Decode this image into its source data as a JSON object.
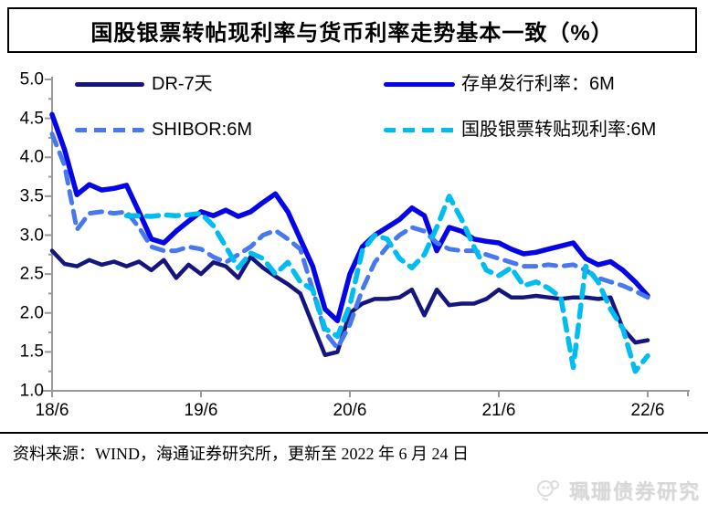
{
  "title": "国股银票转帖现利率与货币利率走势基本一致（%）",
  "legend": [
    {
      "label": "DR-7天",
      "color": "#151580",
      "dash": "solid"
    },
    {
      "label": "存单发行利率：6M",
      "color": "#0505E8",
      "dash": "solid"
    },
    {
      "label": "SHIBOR:6M",
      "color": "#4778EE",
      "dash": "dashed"
    },
    {
      "label": "国股银票转贴现利率:6M",
      "color": "#00BDF0",
      "dash": "dashed"
    }
  ],
  "footer": {
    "source": "资料来源：WIND，海通证券研究所，更新至 2022 年 6 月 24 日",
    "watermark": "珮珊债券研究"
  },
  "chart_data": {
    "type": "line",
    "title": "国股银票转帖现利率与货币利率走势基本一致（%）",
    "x_start": "2018-06",
    "x_end": "2022-06",
    "x_step": "1 month",
    "x_tick_labels": [
      "18/6",
      "19/6",
      "20/6",
      "21/6",
      "22/6"
    ],
    "x_tick_month_index": [
      0,
      12,
      24,
      36,
      48
    ],
    "y_tick_labels": [
      "5.0",
      "4.5",
      "4.0",
      "3.5",
      "3.0",
      "2.5",
      "2.0",
      "1.5",
      "1.0"
    ],
    "ylim": [
      1.0,
      5.0
    ],
    "y_minor_step": 0.25,
    "grid": false,
    "legend_position": "top-inside",
    "axis_color": "#999999",
    "series": [
      {
        "name": "DR-7天",
        "color": "#151580",
        "dash": "solid",
        "width": 4.5,
        "values": [
          2.8,
          2.63,
          2.6,
          2.68,
          2.62,
          2.66,
          2.6,
          2.66,
          2.55,
          2.68,
          2.45,
          2.62,
          2.5,
          2.65,
          2.6,
          2.45,
          2.72,
          2.58,
          2.47,
          2.37,
          2.25,
          1.85,
          1.46,
          1.5,
          2.0,
          2.12,
          2.18,
          2.18,
          2.2,
          2.3,
          1.97,
          2.3,
          2.1,
          2.12,
          2.12,
          2.18,
          2.3,
          2.2,
          2.2,
          2.22,
          2.2,
          2.18,
          2.2,
          2.2,
          2.18,
          2.2,
          1.8,
          1.62,
          1.65
        ]
      },
      {
        "name": "存单发行利率：6M",
        "color": "#0505E8",
        "dash": "solid",
        "width": 5.5,
        "values": [
          4.55,
          4.1,
          3.52,
          3.65,
          3.58,
          3.6,
          3.64,
          3.3,
          2.95,
          2.9,
          3.05,
          3.18,
          3.3,
          3.25,
          3.32,
          3.24,
          3.3,
          3.42,
          3.53,
          3.3,
          2.95,
          2.6,
          2.05,
          1.9,
          2.5,
          2.85,
          3.0,
          3.1,
          3.2,
          3.35,
          3.25,
          2.8,
          3.1,
          3.05,
          2.95,
          2.92,
          2.9,
          2.82,
          2.76,
          2.78,
          2.82,
          2.86,
          2.9,
          2.7,
          2.62,
          2.66,
          2.55,
          2.4,
          2.22
        ]
      },
      {
        "name": "SHIBOR:6M",
        "color": "#4778EE",
        "dash": "dashed",
        "width": 5,
        "values": [
          4.3,
          3.9,
          3.07,
          3.28,
          3.3,
          3.28,
          3.3,
          3.1,
          2.85,
          2.8,
          2.8,
          2.85,
          2.82,
          2.72,
          2.65,
          2.75,
          2.85,
          3.0,
          3.06,
          2.95,
          2.82,
          2.3,
          1.75,
          1.55,
          1.85,
          2.3,
          2.65,
          2.85,
          3.0,
          3.1,
          3.05,
          2.9,
          2.82,
          2.8,
          2.8,
          2.75,
          2.7,
          2.65,
          2.6,
          2.6,
          2.62,
          2.6,
          2.62,
          2.55,
          2.45,
          2.4,
          2.35,
          2.28,
          2.2
        ]
      },
      {
        "name": "国股银票转贴现利率:6M",
        "color": "#00BDF0",
        "dash": "dashed",
        "width": 5.5,
        "values": [
          null,
          null,
          null,
          null,
          null,
          null,
          3.25,
          3.25,
          3.24,
          3.26,
          3.25,
          3.26,
          3.28,
          3.12,
          2.85,
          2.58,
          2.77,
          2.7,
          2.5,
          2.65,
          2.4,
          2.3,
          1.8,
          1.7,
          2.1,
          2.8,
          3.0,
          2.95,
          2.7,
          2.58,
          2.75,
          3.1,
          3.5,
          3.2,
          2.85,
          2.55,
          2.48,
          2.58,
          2.35,
          2.4,
          2.32,
          2.2,
          1.3,
          2.6,
          2.4,
          2.05,
          1.8,
          1.25,
          1.45
        ]
      }
    ]
  }
}
